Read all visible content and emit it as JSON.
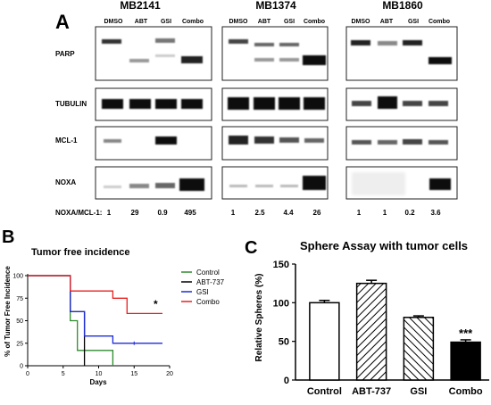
{
  "panelA": {
    "letter": "A",
    "groups": [
      {
        "name": "MB2141",
        "lanes": [
          "DMSO",
          "ABT",
          "GSI",
          "Combo"
        ],
        "ratios": [
          "1",
          "29",
          "0.9",
          "495"
        ]
      },
      {
        "name": "MB1374",
        "lanes": [
          "DMSO",
          "ABT",
          "GSI",
          "Combo"
        ],
        "ratios": [
          "1",
          "2.5",
          "4.4",
          "26"
        ]
      },
      {
        "name": "MB1860",
        "lanes": [
          "DMSO",
          "ABT",
          "GSI",
          "Combo"
        ],
        "ratios": [
          "1",
          "1",
          "0.2",
          "3.6"
        ]
      }
    ],
    "rows": [
      "PARP",
      "TUBULIN",
      "MCL-1",
      "NOXA"
    ],
    "ratio_label": "NOXA/MCL-1:"
  },
  "panelB": {
    "letter": "B",
    "chart_data": {
      "type": "line",
      "title": "Tumor free incidence",
      "xlabel": "Days",
      "ylabel": "% of Tumor Free Incidence",
      "xlim": [
        0,
        20
      ],
      "ylim": [
        0,
        100
      ],
      "xticks": [
        0,
        5,
        10,
        15,
        20
      ],
      "yticks": [
        0,
        25,
        50,
        75,
        100
      ],
      "legend_position": "right",
      "series": [
        {
          "name": "Control",
          "color": "#2e8b2e",
          "steps": [
            [
              0,
              100
            ],
            [
              6,
              100
            ],
            [
              6,
              50
            ],
            [
              7,
              50
            ],
            [
              7,
              17
            ],
            [
              12,
              17
            ],
            [
              12,
              0
            ]
          ]
        },
        {
          "name": "ABT-737",
          "color": "#000000",
          "steps": [
            [
              0,
              100
            ],
            [
              6,
              100
            ],
            [
              6,
              60
            ],
            [
              8,
              60
            ],
            [
              8,
              0
            ]
          ]
        },
        {
          "name": "GSI",
          "color": "#1c2bd6",
          "steps": [
            [
              0,
              100
            ],
            [
              6,
              100
            ],
            [
              6,
              60
            ],
            [
              8,
              60
            ],
            [
              8,
              33
            ],
            [
              12,
              33
            ],
            [
              12,
              25
            ],
            [
              19,
              25
            ]
          ]
        },
        {
          "name": "Combo",
          "color": "#e82020",
          "steps": [
            [
              0,
              100
            ],
            [
              6,
              100
            ],
            [
              6,
              83
            ],
            [
              12,
              83
            ],
            [
              12,
              75
            ],
            [
              14,
              75
            ],
            [
              14,
              58
            ],
            [
              19,
              58
            ]
          ]
        }
      ],
      "annotation": "*"
    }
  },
  "panelC": {
    "letter": "C",
    "chart_data": {
      "type": "bar",
      "title": "Sphere Assay with tumor cells",
      "categories": [
        "Control",
        "ABT-737",
        "GSI",
        "Combo"
      ],
      "values": [
        100,
        125,
        81,
        49
      ],
      "errors": [
        3,
        4,
        2,
        3
      ],
      "ylabel": "Relative Spheres (%)",
      "ylim": [
        0,
        150
      ],
      "yticks": [
        0,
        50,
        100,
        150
      ],
      "patterns": [
        "none",
        "diag-right",
        "diag-left",
        "solid"
      ],
      "annotation": "***"
    }
  }
}
